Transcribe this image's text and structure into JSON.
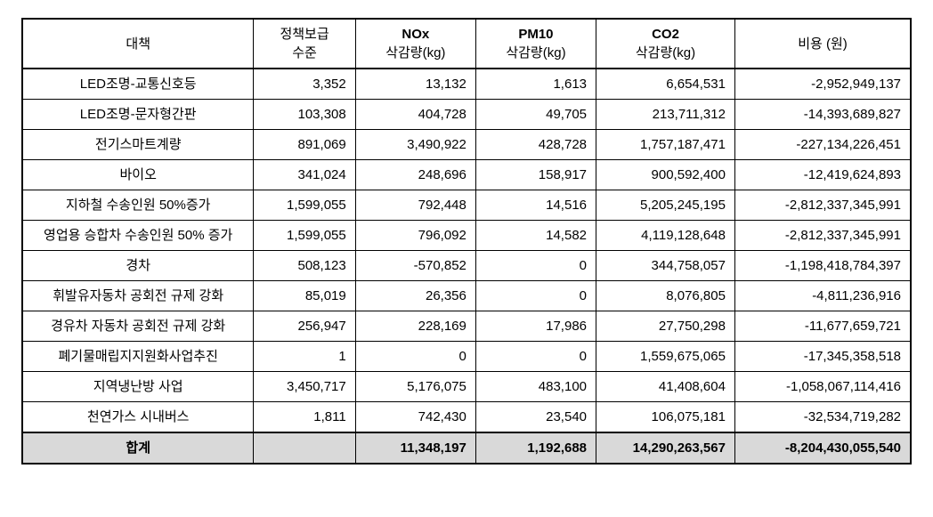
{
  "table": {
    "headers": {
      "policy": "대책",
      "level_l1": "정책보급",
      "level_l2": "수준",
      "nox_l1": "NOx",
      "nox_l2": "삭감량(kg)",
      "pm10_l1": "PM10",
      "pm10_l2": "삭감량(kg)",
      "co2_l1": "CO2",
      "co2_l2": "삭감량(kg)",
      "cost": "비용 (원)"
    },
    "rows": [
      {
        "policy": "LED조명-교통신호등",
        "level": "3,352",
        "nox": "13,132",
        "pm10": "1,613",
        "co2": "6,654,531",
        "cost": "-2,952,949,137"
      },
      {
        "policy": "LED조명-문자형간판",
        "level": "103,308",
        "nox": "404,728",
        "pm10": "49,705",
        "co2": "213,711,312",
        "cost": "-14,393,689,827"
      },
      {
        "policy": "전기스마트계량",
        "level": "891,069",
        "nox": "3,490,922",
        "pm10": "428,728",
        "co2": "1,757,187,471",
        "cost": "-227,134,226,451"
      },
      {
        "policy": "바이오",
        "level": "341,024",
        "nox": "248,696",
        "pm10": "158,917",
        "co2": "900,592,400",
        "cost": "-12,419,624,893"
      },
      {
        "policy": "지하철 수송인원 50%증가",
        "level": "1,599,055",
        "nox": "792,448",
        "pm10": "14,516",
        "co2": "5,205,245,195",
        "cost": "-2,812,337,345,991"
      },
      {
        "policy": "영업용 승합차 수송인원 50% 증가",
        "level": "1,599,055",
        "nox": "796,092",
        "pm10": "14,582",
        "co2": "4,119,128,648",
        "cost": "-2,812,337,345,991"
      },
      {
        "policy": "경차",
        "level": "508,123",
        "nox": "-570,852",
        "pm10": "0",
        "co2": "344,758,057",
        "cost": "-1,198,418,784,397"
      },
      {
        "policy": "휘발유자동차 공회전 규제  강화",
        "level": "85,019",
        "nox": "26,356",
        "pm10": "0",
        "co2": "8,076,805",
        "cost": "-4,811,236,916"
      },
      {
        "policy": "경유차 자동차 공회전 규제 강화",
        "level": "256,947",
        "nox": "228,169",
        "pm10": "17,986",
        "co2": "27,750,298",
        "cost": "-11,677,659,721"
      },
      {
        "policy": "폐기물매립지지원화사업추진",
        "level": "1",
        "nox": "0",
        "pm10": "0",
        "co2": "1,559,675,065",
        "cost": "-17,345,358,518"
      },
      {
        "policy": "지역냉난방 사업",
        "level": "3,450,717",
        "nox": "5,176,075",
        "pm10": "483,100",
        "co2": "41,408,604",
        "cost": "-1,058,067,114,416"
      },
      {
        "policy": "천연가스 시내버스",
        "level": "1,811",
        "nox": "742,430",
        "pm10": "23,540",
        "co2": "106,075,181",
        "cost": "-32,534,719,282"
      }
    ],
    "total": {
      "label": "합계",
      "level": "",
      "nox": "11,348,197",
      "pm10": "1,192,688",
      "co2": "14,290,263,567",
      "cost": "-8,204,430,055,540"
    },
    "styles": {
      "border_color": "#000000",
      "header_bg": "#ffffff",
      "total_bg": "#d9d9d9",
      "font_size": 15,
      "col_widths": {
        "policy": 250,
        "level": 110,
        "nox": 130,
        "pm10": 130,
        "co2": 150,
        "cost": 190
      }
    }
  }
}
